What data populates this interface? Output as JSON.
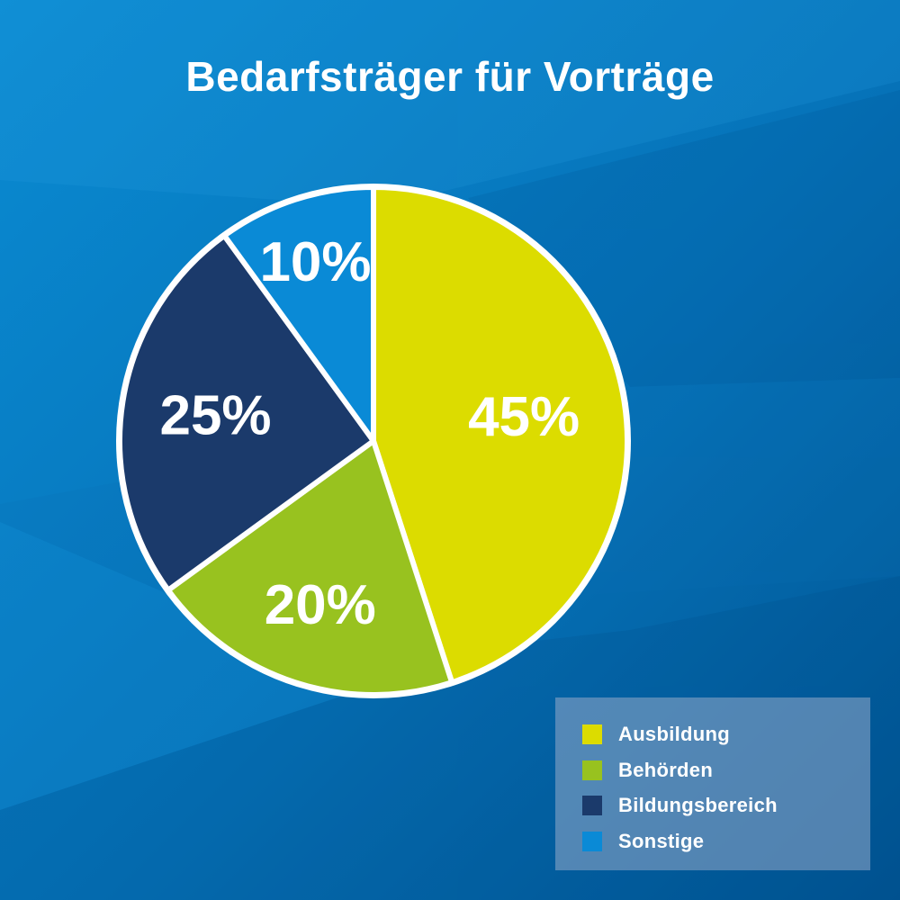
{
  "chart_data": {
    "type": "pie",
    "title": "Bedarfsträger für Vorträge",
    "categories": [
      "Ausbildung",
      "Behörden",
      "Bildungsbereich",
      "Sonstige"
    ],
    "values": [
      45,
      20,
      25,
      10
    ],
    "labels": [
      "45%",
      "20%",
      "25%",
      "10%"
    ],
    "colors": [
      "#dcdc00",
      "#98c21f",
      "#1b3a6b",
      "#0a8ad6"
    ],
    "legend_position": "bottom-right"
  },
  "colors": {
    "background_top": "#0a86cf",
    "background_bottom": "#00589a",
    "slice_border": "#ffffff",
    "label_text": "#ffffff"
  }
}
